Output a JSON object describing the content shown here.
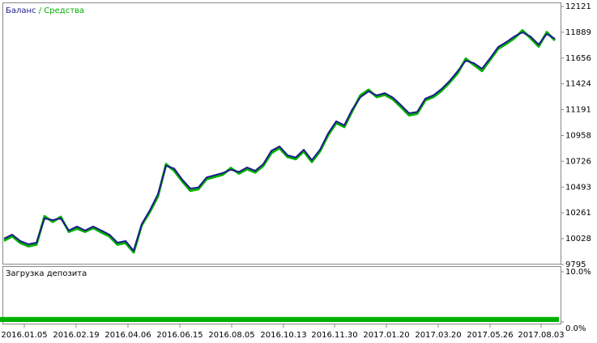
{
  "chart_data": [
    {
      "type": "line",
      "legend": {
        "separator": "/"
      },
      "xlim": [
        0,
        68
      ],
      "xticks": [
        {
          "value": 2.5,
          "label": "2016.01.05"
        },
        {
          "value": 8.9,
          "label": "2016.02.19"
        },
        {
          "value": 15.3,
          "label": "2016.04.06"
        },
        {
          "value": 21.7,
          "label": "2016.06.15"
        },
        {
          "value": 28.1,
          "label": "2016.08.05"
        },
        {
          "value": 34.5,
          "label": "2016.10.13"
        },
        {
          "value": 40.8,
          "label": "2016.11.30"
        },
        {
          "value": 47.2,
          "label": "2017.01.20"
        },
        {
          "value": 53.6,
          "label": "2017.03.20"
        },
        {
          "value": 60,
          "label": "2017.05.26"
        },
        {
          "value": 66.3,
          "label": "2017.08.03"
        }
      ],
      "ylim": [
        9795,
        12121
      ],
      "yticks": [
        9795,
        10028,
        10261,
        10493,
        10726,
        10958,
        11191,
        11424,
        11656,
        11889,
        12121
      ],
      "series": [
        {
          "name": "Средства",
          "color": "#00b000",
          "values": [
            10010,
            10050,
            9990,
            9960,
            9975,
            10230,
            10180,
            10225,
            10090,
            10120,
            10090,
            10125,
            10085,
            10050,
            9975,
            9990,
            9905,
            10150,
            10270,
            10410,
            10700,
            10640,
            10545,
            10460,
            10475,
            10565,
            10585,
            10605,
            10665,
            10615,
            10655,
            10625,
            10685,
            10800,
            10845,
            10765,
            10745,
            10815,
            10720,
            10815,
            10960,
            11070,
            11035,
            11180,
            11320,
            11370,
            11305,
            11325,
            11285,
            11215,
            11140,
            11155,
            11275,
            11305,
            11360,
            11435,
            11520,
            11650,
            11595,
            11540,
            11640,
            11740,
            11785,
            11835,
            11905,
            11835,
            11760,
            11890,
            11815
          ]
        },
        {
          "name": "Баланс",
          "color": "#1c1c8c",
          "values": [
            10029,
            10065,
            10007,
            9978,
            9992,
            10211,
            10196,
            10211,
            10102,
            10138,
            10102,
            10138,
            10102,
            10065,
            9992,
            10007,
            9919,
            10160,
            10284,
            10430,
            10685,
            10660,
            10560,
            10480,
            10490,
            10580,
            10600,
            10620,
            10650,
            10630,
            10670,
            10640,
            10700,
            10820,
            10860,
            10780,
            10760,
            10830,
            10736,
            10830,
            10976,
            11086,
            11050,
            11195,
            11304,
            11356,
            11320,
            11340,
            11300,
            11232,
            11159,
            11170,
            11290,
            11320,
            11377,
            11450,
            11538,
            11633,
            11610,
            11560,
            11654,
            11756,
            11800,
            11851,
            11888,
            11850,
            11778,
            11873,
            11830
          ]
        }
      ]
    },
    {
      "type": "bar",
      "title": "Загрузка депозита",
      "color": "#00b000",
      "ylim": [
        0,
        10
      ],
      "yticks": [
        {
          "value": 0,
          "label": "0.0%"
        },
        {
          "value": 10,
          "label": "10.0%"
        }
      ],
      "values": [
        1,
        1,
        1,
        1,
        1,
        1,
        1,
        1,
        1,
        1,
        1,
        1,
        1,
        1,
        1,
        1,
        1,
        1,
        1,
        1,
        1,
        1,
        1,
        1,
        1,
        1,
        1,
        1,
        1,
        1,
        1,
        1,
        1,
        1,
        1,
        1,
        1,
        1,
        1,
        1,
        1,
        1,
        1,
        1,
        1,
        1,
        1,
        1,
        1,
        1,
        1,
        1,
        1,
        1,
        1,
        1,
        1,
        1,
        1,
        1,
        1,
        1,
        1,
        1,
        1,
        1,
        1,
        1,
        1
      ]
    }
  ]
}
